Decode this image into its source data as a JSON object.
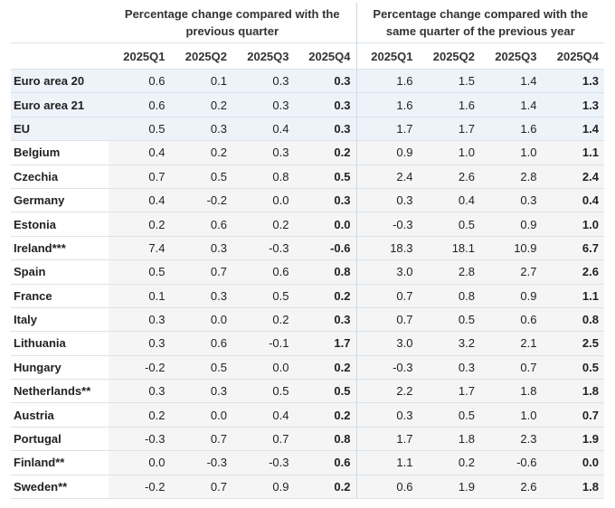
{
  "table": {
    "groups": [
      {
        "title": "Percentage change compared with the previous quarter",
        "columns": [
          "2025Q1",
          "2025Q2",
          "2025Q3",
          "2025Q4"
        ]
      },
      {
        "title": "Percentage change compared with the same quarter of the previous year",
        "columns": [
          "2025Q1",
          "2025Q2",
          "2025Q3",
          "2025Q4"
        ]
      }
    ],
    "rows": [
      {
        "label": "Euro area 20",
        "values": [
          "0.6",
          "0.1",
          "0.3",
          "0.3",
          "1.6",
          "1.5",
          "1.4",
          "1.3"
        ]
      },
      {
        "label": "Euro area 21",
        "values": [
          "0.6",
          "0.2",
          "0.3",
          "0.3",
          "1.6",
          "1.6",
          "1.4",
          "1.3"
        ]
      },
      {
        "label": "EU",
        "values": [
          "0.5",
          "0.3",
          "0.4",
          "0.3",
          "1.7",
          "1.7",
          "1.6",
          "1.4"
        ]
      },
      {
        "label": "Belgium",
        "values": [
          "0.4",
          "0.2",
          "0.3",
          "0.2",
          "0.9",
          "1.0",
          "1.0",
          "1.1"
        ]
      },
      {
        "label": "Czechia",
        "values": [
          "0.7",
          "0.5",
          "0.8",
          "0.5",
          "2.4",
          "2.6",
          "2.8",
          "2.4"
        ]
      },
      {
        "label": "Germany",
        "values": [
          "0.4",
          "-0.2",
          "0.0",
          "0.3",
          "0.3",
          "0.4",
          "0.3",
          "0.4"
        ]
      },
      {
        "label": "Estonia",
        "values": [
          "0.2",
          "0.6",
          "0.2",
          "0.0",
          "-0.3",
          "0.5",
          "0.9",
          "1.0"
        ]
      },
      {
        "label": "Ireland***",
        "values": [
          "7.4",
          "0.3",
          "-0.3",
          "-0.6",
          "18.3",
          "18.1",
          "10.9",
          "6.7"
        ]
      },
      {
        "label": "Spain",
        "values": [
          "0.5",
          "0.7",
          "0.6",
          "0.8",
          "3.0",
          "2.8",
          "2.7",
          "2.6"
        ]
      },
      {
        "label": "France",
        "values": [
          "0.1",
          "0.3",
          "0.5",
          "0.2",
          "0.7",
          "0.8",
          "0.9",
          "1.1"
        ]
      },
      {
        "label": "Italy",
        "values": [
          "0.3",
          "0.0",
          "0.2",
          "0.3",
          "0.7",
          "0.5",
          "0.6",
          "0.8"
        ]
      },
      {
        "label": "Lithuania",
        "values": [
          "0.3",
          "0.6",
          "-0.1",
          "1.7",
          "3.0",
          "3.2",
          "2.1",
          "2.5"
        ]
      },
      {
        "label": "Hungary",
        "values": [
          "-0.2",
          "0.5",
          "0.0",
          "0.2",
          "-0.3",
          "0.3",
          "0.7",
          "0.5"
        ]
      },
      {
        "label": "Netherlands**",
        "values": [
          "0.3",
          "0.3",
          "0.5",
          "0.5",
          "2.2",
          "1.7",
          "1.8",
          "1.8"
        ]
      },
      {
        "label": "Austria",
        "values": [
          "0.2",
          "0.0",
          "0.4",
          "0.2",
          "0.3",
          "0.5",
          "1.0",
          "0.7"
        ]
      },
      {
        "label": "Portugal",
        "values": [
          "-0.3",
          "0.7",
          "0.7",
          "0.8",
          "1.7",
          "1.8",
          "2.3",
          "1.9"
        ]
      },
      {
        "label": "Finland**",
        "values": [
          "0.0",
          "-0.3",
          "-0.3",
          "0.6",
          "1.1",
          "0.2",
          "-0.6",
          "0.0"
        ]
      },
      {
        "label": "Sweden**",
        "values": [
          "-0.2",
          "0.7",
          "0.9",
          "0.2",
          "0.6",
          "1.9",
          "2.6",
          "1.8"
        ]
      }
    ]
  }
}
